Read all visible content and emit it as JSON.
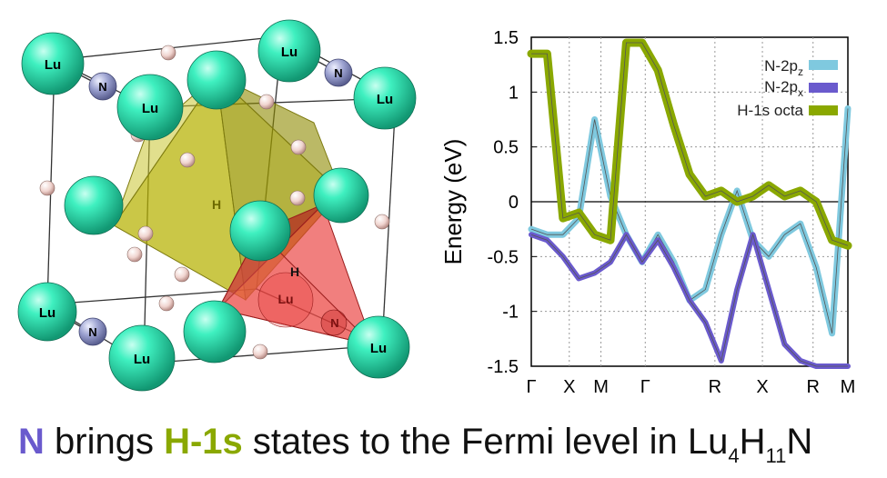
{
  "structure": {
    "atoms": {
      "lu": "Lu",
      "n": "N",
      "h": "H"
    }
  },
  "plot": {
    "ylabel": "Energy (eV)",
    "y_ticks": [
      "1.5",
      "1",
      "0.5",
      "0",
      "-0.5",
      "-1",
      "-1.5"
    ],
    "k_labels": [
      "Γ",
      "X",
      "M",
      "Γ",
      "R",
      "X",
      "R",
      "M"
    ],
    "legend": [
      "N-2pz",
      "N-2px",
      "H-1s octa"
    ]
  },
  "colors": {
    "lu": "#2fe0b0",
    "n": "#8d92c6",
    "h": "#f1d7d2",
    "octahedron": "#b5b200",
    "tetrahedron": "#e8302f",
    "n2pz": "#7fc9df",
    "n2px": "#6a5acd",
    "h1s": "#8aa800"
  },
  "caption": {
    "part1": "N",
    "part2": " brings ",
    "part3": "H-1s",
    "part4": " states to the Fermi level in Lu",
    "sub1": "4",
    "part5": "H",
    "sub2": "11",
    "part6": "N"
  },
  "chart_data": {
    "type": "line",
    "title": "",
    "xlabel": "",
    "ylabel": "Energy (eV)",
    "ylim": [
      -1.5,
      1.5
    ],
    "x_ticks": [
      "Γ",
      "X",
      "M",
      "Γ",
      "R",
      "X",
      "R",
      "M"
    ],
    "x": [
      0.0,
      0.5,
      1.0,
      1.5,
      2.0,
      2.5,
      3.0,
      3.5,
      4.0,
      4.5,
      5.0,
      5.5,
      6.0,
      6.5,
      7.0,
      7.5,
      8.0,
      8.5,
      9.0,
      9.5,
      10.0
    ],
    "grid": "vertical dashed lines at high-symmetry points; solid line at 0",
    "series": [
      {
        "name": "N-2pz",
        "values": [
          -0.25,
          -0.3,
          -0.3,
          -0.15,
          0.75,
          0.05,
          -0.3,
          -0.55,
          -0.3,
          -0.55,
          -0.9,
          -0.8,
          -0.3,
          0.1,
          -0.35,
          -0.5,
          -0.3,
          -0.2,
          -0.6,
          -1.2,
          0.85
        ]
      },
      {
        "name": "N-2px",
        "values": [
          -0.3,
          -0.35,
          -0.5,
          -0.7,
          -0.65,
          -0.55,
          -0.3,
          -0.55,
          -0.35,
          -0.6,
          -0.9,
          -1.1,
          -1.45,
          -0.8,
          -0.3,
          -0.8,
          -1.3,
          -1.45,
          -1.5,
          -1.5,
          -1.5
        ]
      },
      {
        "name": "H-1s octa",
        "values": [
          1.35,
          1.35,
          -0.15,
          -0.1,
          -0.3,
          -0.35,
          1.45,
          1.45,
          1.2,
          0.7,
          0.25,
          0.05,
          0.1,
          0.0,
          0.05,
          0.15,
          0.05,
          0.1,
          0.0,
          -0.35,
          -0.4
        ]
      }
    ]
  }
}
